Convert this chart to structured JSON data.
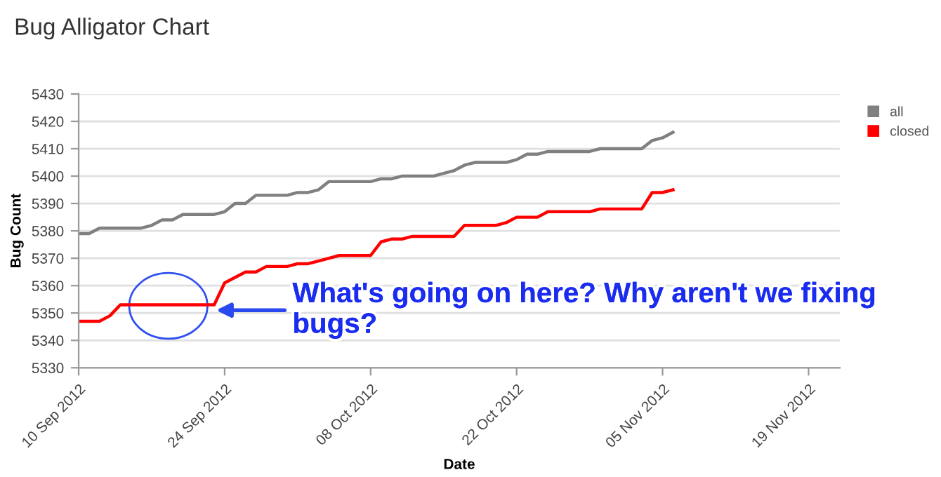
{
  "chart_data": {
    "type": "line",
    "title": "Bug Alligator Chart",
    "xlabel": "Date",
    "ylabel": "Bug Count",
    "x": [
      "2012-09-10",
      "2012-09-11",
      "2012-09-12",
      "2012-09-13",
      "2012-09-14",
      "2012-09-15",
      "2012-09-16",
      "2012-09-17",
      "2012-09-18",
      "2012-09-19",
      "2012-09-20",
      "2012-09-21",
      "2012-09-22",
      "2012-09-23",
      "2012-09-24",
      "2012-09-25",
      "2012-09-26",
      "2012-09-27",
      "2012-09-28",
      "2012-09-29",
      "2012-09-30",
      "2012-10-01",
      "2012-10-02",
      "2012-10-03",
      "2012-10-04",
      "2012-10-05",
      "2012-10-06",
      "2012-10-07",
      "2012-10-08",
      "2012-10-09",
      "2012-10-10",
      "2012-10-11",
      "2012-10-12",
      "2012-10-13",
      "2012-10-14",
      "2012-10-15",
      "2012-10-16",
      "2012-10-17",
      "2012-10-18",
      "2012-10-19",
      "2012-10-20",
      "2012-10-21",
      "2012-10-22",
      "2012-10-23",
      "2012-10-24",
      "2012-10-25",
      "2012-10-26",
      "2012-10-27",
      "2012-10-28",
      "2012-10-29",
      "2012-10-30",
      "2012-10-31",
      "2012-11-01",
      "2012-11-02",
      "2012-11-03",
      "2012-11-04",
      "2012-11-05",
      "2012-11-06"
    ],
    "series": [
      {
        "name": "all",
        "color": "#808080",
        "values": [
          5379,
          5379,
          5381,
          5381,
          5381,
          5381,
          5381,
          5382,
          5384,
          5384,
          5386,
          5386,
          5386,
          5386,
          5387,
          5390,
          5390,
          5393,
          5393,
          5393,
          5393,
          5394,
          5394,
          5395,
          5398,
          5398,
          5398,
          5398,
          5398,
          5399,
          5399,
          5400,
          5400,
          5400,
          5400,
          5401,
          5402,
          5404,
          5405,
          5405,
          5405,
          5405,
          5406,
          5408,
          5408,
          5409,
          5409,
          5409,
          5409,
          5409,
          5410,
          5410,
          5410,
          5410,
          5410,
          5413,
          5414,
          5416
        ]
      },
      {
        "name": "closed",
        "color": "#ff0000",
        "values": [
          5347,
          5347,
          5347,
          5349,
          5353,
          5353,
          5353,
          5353,
          5353,
          5353,
          5353,
          5353,
          5353,
          5353,
          5361,
          5363,
          5365,
          5365,
          5367,
          5367,
          5367,
          5368,
          5368,
          5369,
          5370,
          5371,
          5371,
          5371,
          5371,
          5376,
          5377,
          5377,
          5378,
          5378,
          5378,
          5378,
          5378,
          5382,
          5382,
          5382,
          5382,
          5383,
          5385,
          5385,
          5385,
          5387,
          5387,
          5387,
          5387,
          5387,
          5388,
          5388,
          5388,
          5388,
          5388,
          5394,
          5394,
          5395
        ]
      }
    ],
    "xlim": [
      "2012-09-10",
      "2012-11-22"
    ],
    "xticks": [
      {
        "value": "2012-09-10",
        "label": "10 Sep 2012"
      },
      {
        "value": "2012-09-24",
        "label": "24 Sep 2012"
      },
      {
        "value": "2012-10-08",
        "label": "08 Oct 2012"
      },
      {
        "value": "2012-10-22",
        "label": "22 Oct 2012"
      },
      {
        "value": "2012-11-05",
        "label": "05 Nov 2012"
      },
      {
        "value": "2012-11-19",
        "label": "19 Nov 2012"
      }
    ],
    "ylim": [
      5330,
      5430
    ],
    "yticks": [
      5330,
      5340,
      5350,
      5360,
      5370,
      5380,
      5390,
      5400,
      5410,
      5420,
      5430
    ],
    "grid": "y",
    "legend": "top right",
    "marker": "none",
    "line_style": "solid",
    "annotations": [
      {
        "text": "What's going on here? Why aren't we fixing bugs?",
        "x": "2012-09-23",
        "y": 5351
      }
    ]
  }
}
